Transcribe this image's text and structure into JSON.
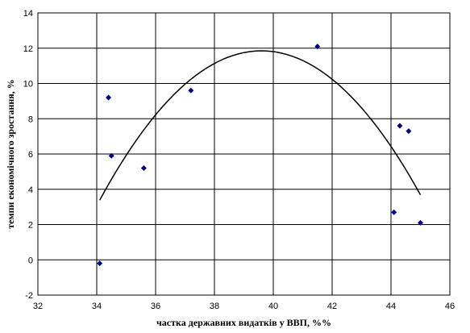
{
  "chart_data": {
    "type": "scatter",
    "title": "",
    "xlabel": "частка державних видатків у ВВП, %%",
    "ylabel": "темпи економічного зростання, %",
    "xlim": [
      32,
      46
    ],
    "ylim": [
      -2,
      14
    ],
    "x_ticks": [
      32,
      34,
      36,
      38,
      40,
      42,
      44,
      46
    ],
    "y_ticks": [
      -2,
      0,
      2,
      4,
      6,
      8,
      10,
      12,
      14
    ],
    "grid": true,
    "legend": "none",
    "marker_color": "#000080",
    "series": [
      {
        "name": "",
        "marker": "diamond",
        "points": [
          {
            "x": 34.1,
            "y": -0.2
          },
          {
            "x": 34.4,
            "y": 9.2
          },
          {
            "x": 34.5,
            "y": 5.9
          },
          {
            "x": 35.6,
            "y": 5.2
          },
          {
            "x": 37.2,
            "y": 9.6
          },
          {
            "x": 41.5,
            "y": 12.1
          },
          {
            "x": 44.1,
            "y": 2.7
          },
          {
            "x": 44.3,
            "y": 7.6
          },
          {
            "x": 44.6,
            "y": 7.3
          },
          {
            "x": 45.0,
            "y": 2.1
          }
        ]
      }
    ],
    "trendline": {
      "type": "polynomial",
      "x_range": [
        34.1,
        45.0
      ],
      "vertex": {
        "x": 39.6,
        "y": 11.85
      },
      "a": -0.28
    }
  }
}
